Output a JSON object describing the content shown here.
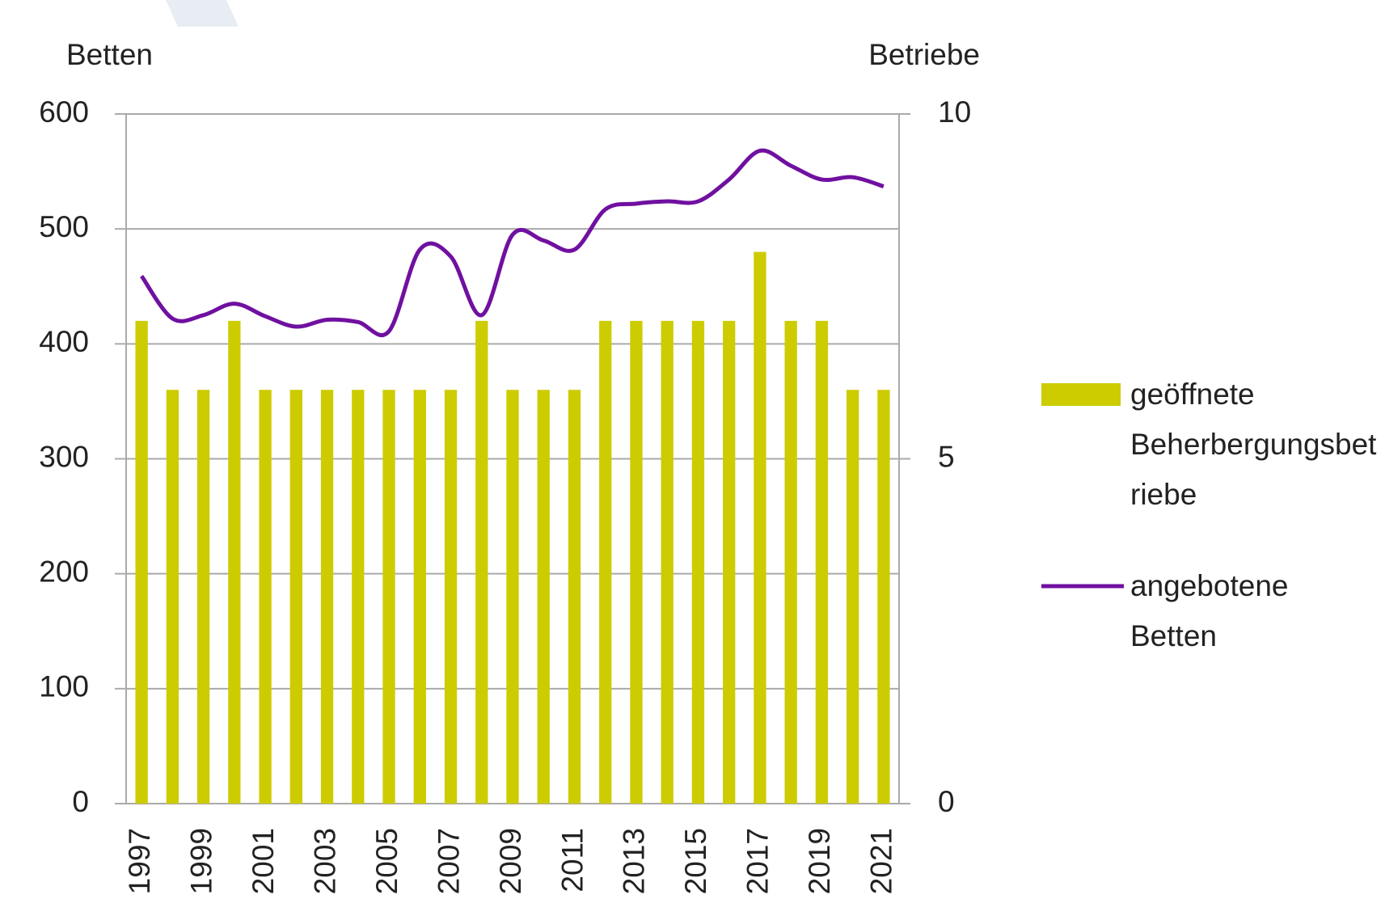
{
  "chart_data": {
    "type": "bar_line",
    "y_label": "Betten",
    "y2_label": "Betriebe",
    "categories": [
      "1997",
      null,
      "1999",
      null,
      "2001",
      null,
      "2003",
      null,
      "2005",
      null,
      "2007",
      null,
      "2009",
      null,
      "2011",
      null,
      "2013",
      null,
      "2015",
      null,
      "2017",
      null,
      "2019",
      null,
      "2021"
    ],
    "series": [
      {
        "name": "geöffnete Beherbergungsbetriebe",
        "type": "bar",
        "axis": "y2",
        "color": "#cccc00",
        "values": [
          7,
          6,
          6,
          7,
          6,
          6,
          6,
          6,
          6,
          6,
          6,
          7,
          6,
          6,
          6,
          7,
          7,
          7,
          7,
          7,
          8,
          7,
          7,
          6,
          6
        ]
      },
      {
        "name": "angebotene Betten",
        "type": "line",
        "axis": "y",
        "color": "#7010a0",
        "values": [
          459,
          422,
          425,
          435,
          424,
          415,
          421,
          419,
          411,
          482,
          476,
          425,
          495,
          490,
          482,
          517,
          522,
          524,
          524,
          543,
          568,
          555,
          543,
          545,
          537
        ]
      }
    ],
    "ylim": [
      0,
      600
    ],
    "yticks": [
      0,
      100,
      200,
      300,
      400,
      500,
      600
    ],
    "y2lim": [
      0,
      10
    ],
    "y2ticks": [
      0,
      5,
      10
    ],
    "grid": true
  }
}
